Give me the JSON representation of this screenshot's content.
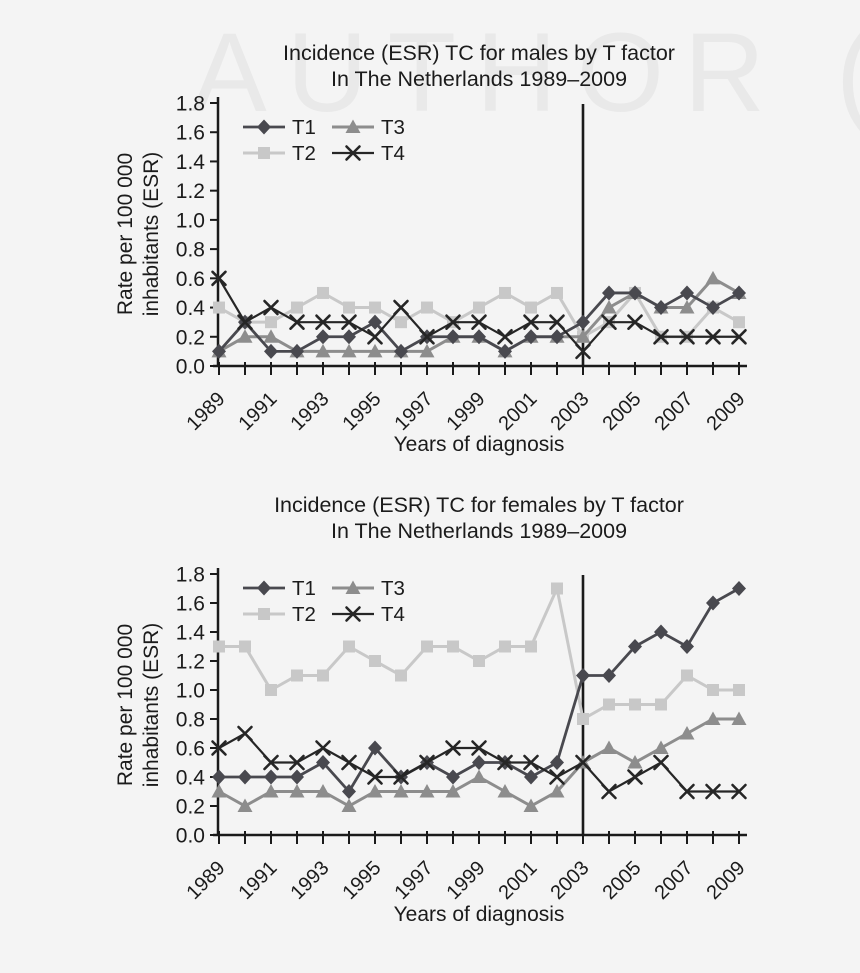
{
  "page": {
    "background": "#f4f4f4",
    "watermark_text": "AUTHOR ("
  },
  "axis": {
    "y_label_line1": "Rate per 100 000",
    "y_label_line2": "inhabitants (ESR)",
    "x_label": "Years of diagnosis",
    "axis_color": "#1a1a1a",
    "vline_color": "#1a1a1a"
  },
  "chart_data": [
    {
      "type": "line",
      "title_line1": "Incidence (ESR) TC for males by T factor",
      "title_line2": "In The Netherlands 1989–2009",
      "xlabel": "Years of diagnosis",
      "ylabel": "Rate per 100 000 inhabitants (ESR)",
      "x": [
        1989,
        1990,
        1991,
        1992,
        1993,
        1994,
        1995,
        1996,
        1997,
        1998,
        1999,
        2000,
        2001,
        2002,
        2003,
        2004,
        2005,
        2006,
        2007,
        2008,
        2009
      ],
      "x_tick_labels": [
        "1989",
        "1991",
        "1993",
        "1995",
        "1997",
        "1999",
        "2001",
        "2003",
        "2005",
        "2007",
        "2009"
      ],
      "ylim": [
        0,
        1.8
      ],
      "y_tick_step": 0.2,
      "grid": false,
      "legend_position": "top-left",
      "legend_order": [
        "T1",
        "T3",
        "T2",
        "T4"
      ],
      "vline_x": 2003,
      "series": [
        {
          "name": "T1",
          "marker": "diamond",
          "color": "#49494f",
          "line_width": 2.8,
          "values": [
            0.1,
            0.3,
            0.1,
            0.1,
            0.2,
            0.2,
            0.3,
            0.1,
            0.2,
            0.2,
            0.2,
            0.1,
            0.2,
            0.2,
            0.3,
            0.5,
            0.5,
            0.4,
            0.5,
            0.4,
            0.5
          ]
        },
        {
          "name": "T2",
          "marker": "square",
          "color": "#c8c8c8",
          "line_width": 3,
          "values": [
            0.4,
            0.3,
            0.3,
            0.4,
            0.5,
            0.4,
            0.4,
            0.3,
            0.4,
            0.3,
            0.4,
            0.5,
            0.4,
            0.5,
            0.2,
            0.3,
            0.5,
            0.2,
            0.2,
            0.4,
            0.3
          ]
        },
        {
          "name": "T3",
          "marker": "triangle",
          "color": "#8d8d8d",
          "line_width": 3,
          "values": [
            0.1,
            0.2,
            0.2,
            0.1,
            0.1,
            0.1,
            0.1,
            0.1,
            0.1,
            0.2,
            0.2,
            0.1,
            0.2,
            0.2,
            0.2,
            0.4,
            0.5,
            0.4,
            0.4,
            0.6,
            0.5
          ]
        },
        {
          "name": "T4",
          "marker": "x",
          "color": "#262626",
          "line_width": 2.2,
          "values": [
            0.6,
            0.3,
            0.4,
            0.3,
            0.3,
            0.3,
            0.2,
            0.4,
            0.2,
            0.3,
            0.3,
            0.2,
            0.3,
            0.3,
            0.1,
            0.3,
            0.3,
            0.2,
            0.2,
            0.2,
            0.2
          ]
        }
      ]
    },
    {
      "type": "line",
      "title_line1": "Incidence (ESR) TC for females by T factor",
      "title_line2": "In The Netherlands 1989–2009",
      "xlabel": "Years of diagnosis",
      "ylabel": "Rate per 100 000 inhabitants (ESR)",
      "x": [
        1989,
        1990,
        1991,
        1992,
        1993,
        1994,
        1995,
        1996,
        1997,
        1998,
        1999,
        2000,
        2001,
        2002,
        2003,
        2004,
        2005,
        2006,
        2007,
        2008,
        2009
      ],
      "x_tick_labels": [
        "1989",
        "1991",
        "1993",
        "1995",
        "1997",
        "1999",
        "2001",
        "2003",
        "2005",
        "2007",
        "2009"
      ],
      "ylim": [
        0,
        1.8
      ],
      "y_tick_step": 0.2,
      "grid": false,
      "legend_position": "top-left",
      "legend_order": [
        "T1",
        "T3",
        "T2",
        "T4"
      ],
      "vline_x": 2003,
      "series": [
        {
          "name": "T1",
          "marker": "diamond",
          "color": "#49494f",
          "line_width": 2.8,
          "values": [
            0.4,
            0.4,
            0.4,
            0.4,
            0.5,
            0.3,
            0.6,
            0.4,
            0.5,
            0.4,
            0.5,
            0.5,
            0.4,
            0.5,
            1.1,
            1.1,
            1.3,
            1.4,
            1.3,
            1.6,
            1.7
          ]
        },
        {
          "name": "T2",
          "marker": "square",
          "color": "#c8c8c8",
          "line_width": 3,
          "values": [
            1.3,
            1.3,
            1.0,
            1.1,
            1.1,
            1.3,
            1.2,
            1.1,
            1.3,
            1.3,
            1.2,
            1.3,
            1.3,
            1.7,
            0.8,
            0.9,
            0.9,
            0.9,
            1.1,
            1.0,
            1.0
          ]
        },
        {
          "name": "T3",
          "marker": "triangle",
          "color": "#8d8d8d",
          "line_width": 3,
          "values": [
            0.3,
            0.2,
            0.3,
            0.3,
            0.3,
            0.2,
            0.3,
            0.3,
            0.3,
            0.3,
            0.4,
            0.3,
            0.2,
            0.3,
            0.5,
            0.6,
            0.5,
            0.6,
            0.7,
            0.8,
            0.8
          ]
        },
        {
          "name": "T4",
          "marker": "x",
          "color": "#262626",
          "line_width": 2.2,
          "values": [
            0.6,
            0.7,
            0.5,
            0.5,
            0.6,
            0.5,
            0.4,
            0.4,
            0.5,
            0.6,
            0.6,
            0.5,
            0.5,
            0.4,
            0.5,
            0.3,
            0.4,
            0.5,
            0.3,
            0.3,
            0.3
          ]
        }
      ]
    }
  ]
}
